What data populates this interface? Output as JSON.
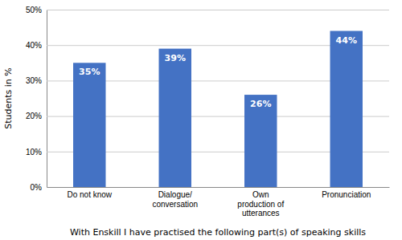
{
  "chart_data": {
    "type": "bar",
    "categories": [
      "Do not know",
      "Dialogue/\nconversation",
      "Own\nproduction of\nutterances",
      "Pronunciation"
    ],
    "values": [
      35,
      39,
      26,
      44
    ],
    "value_labels": [
      "35%",
      "39%",
      "26%",
      "44%"
    ],
    "data_labels": true,
    "color": "#4472C4",
    "ylabel": "Students in %",
    "xlabel": "With Enskill I have practised the following part(s) of speaking skills",
    "ylim": [
      0,
      50
    ],
    "yticks": [
      {
        "value": 0,
        "label": "0%"
      },
      {
        "value": 10,
        "label": "10%"
      },
      {
        "value": 20,
        "label": "20%"
      },
      {
        "value": 30,
        "label": "30%"
      },
      {
        "value": 40,
        "label": "40%"
      },
      {
        "value": 50,
        "label": "50%"
      }
    ],
    "grid": true
  }
}
